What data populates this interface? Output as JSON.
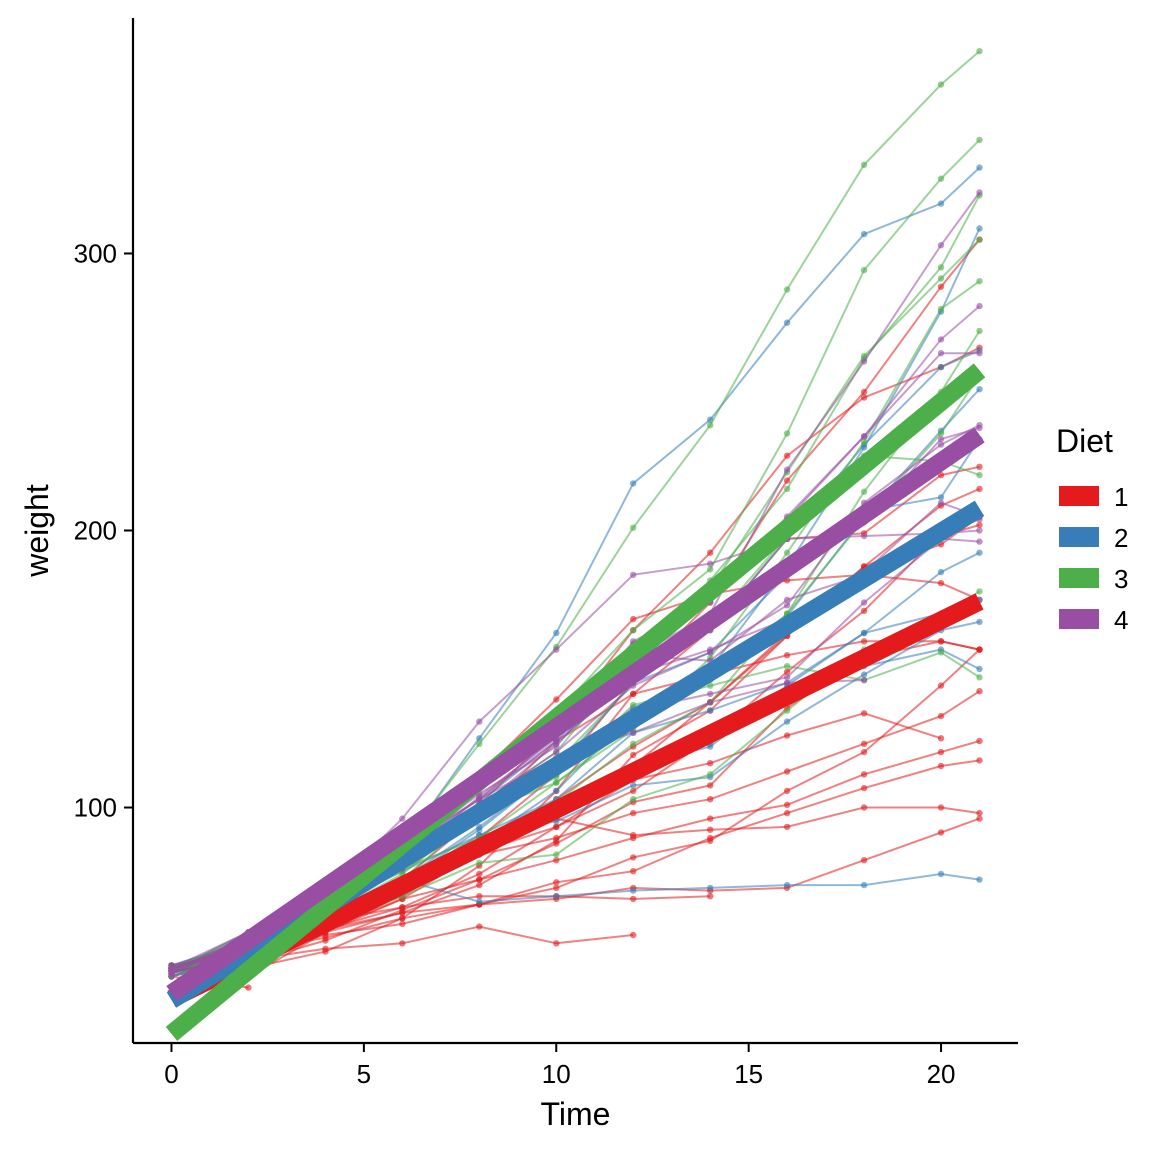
{
  "chart_data": {
    "type": "line",
    "title": "",
    "xlabel": "Time",
    "ylabel": "weight",
    "xlim": [
      -1,
      22
    ],
    "ylim": [
      15,
      385
    ],
    "x_ticks": [
      0,
      5,
      10,
      15,
      20
    ],
    "y_ticks": [
      100,
      200,
      300
    ],
    "grid": false,
    "legend": {
      "title": "Diet",
      "placement": "right"
    },
    "colors": {
      "1": "#e41a1c",
      "2": "#377eb8",
      "3": "#4daf4a",
      "4": "#984ea3"
    },
    "times": [
      0,
      2,
      4,
      6,
      8,
      10,
      12,
      14,
      16,
      18,
      20,
      21
    ],
    "series": [
      {
        "name": "1",
        "color": "#e41a1c",
        "chicks": [
          [
            42,
            51,
            59,
            64,
            76,
            93,
            106,
            125,
            149,
            171,
            199,
            205
          ],
          [
            40,
            49,
            58,
            72,
            84,
            103,
            122,
            138,
            162,
            187,
            209,
            215
          ],
          [
            43,
            39,
            55,
            67,
            84,
            99,
            115,
            138,
            163,
            187,
            198,
            202
          ],
          [
            42,
            49,
            56,
            67,
            74,
            87,
            102,
            108,
            136,
            154,
            160,
            157
          ],
          [
            41,
            42,
            48,
            60,
            79,
            106,
            141,
            164,
            197,
            199,
            220,
            223
          ],
          [
            41,
            49,
            59,
            74,
            97,
            124,
            141,
            148,
            155,
            160,
            160,
            157
          ],
          [
            41,
            49,
            57,
            71,
            89,
            112,
            146,
            174,
            218,
            250,
            288,
            305
          ],
          [
            42,
            50,
            61,
            71,
            84,
            93,
            110,
            116,
            126,
            134,
            125,
            null
          ],
          [
            42,
            51,
            59,
            68,
            85,
            96,
            90,
            92,
            93,
            100,
            100,
            98
          ],
          [
            41,
            44,
            52,
            63,
            74,
            81,
            89,
            96,
            101,
            112,
            120,
            124
          ],
          [
            43,
            51,
            63,
            84,
            112,
            139,
            168,
            177,
            182,
            184,
            181,
            175
          ],
          [
            41,
            49,
            56,
            62,
            72,
            88,
            119,
            135,
            162,
            185,
            195,
            205
          ],
          [
            41,
            48,
            53,
            60,
            65,
            67,
            71,
            70,
            71,
            81,
            91,
            96
          ],
          [
            41,
            49,
            62,
            79,
            101,
            128,
            164,
            192,
            227,
            248,
            259,
            266
          ],
          [
            41,
            49,
            56,
            64,
            68,
            68,
            67,
            68,
            null,
            null,
            null,
            null
          ],
          [
            41,
            45,
            49,
            51,
            57,
            51,
            54,
            null,
            null,
            null,
            null,
            null
          ],
          [
            42,
            51,
            61,
            72,
            83,
            89,
            98,
            103,
            113,
            123,
            133,
            142
          ],
          [
            39,
            35,
            null,
            null,
            null,
            null,
            null,
            null,
            null,
            null,
            null,
            null
          ],
          [
            43,
            48,
            55,
            62,
            65,
            71,
            82,
            88,
            106,
            120,
            144,
            157
          ],
          [
            41,
            47,
            54,
            58,
            65,
            73,
            77,
            89,
            98,
            107,
            115,
            117
          ]
        ]
      },
      {
        "name": "2",
        "color": "#377eb8",
        "chicks": [
          [
            40,
            50,
            62,
            86,
            125,
            163,
            217,
            240,
            275,
            307,
            318,
            331
          ],
          [
            41,
            55,
            64,
            77,
            90,
            95,
            108,
            111,
            131,
            148,
            164,
            167
          ],
          [
            43,
            52,
            61,
            73,
            90,
            103,
            127,
            135,
            145,
            163,
            170,
            175
          ],
          [
            42,
            52,
            58,
            74,
            66,
            68,
            70,
            71,
            72,
            72,
            76,
            74
          ],
          [
            40,
            49,
            62,
            78,
            102,
            124,
            146,
            164,
            197,
            231,
            259,
            265
          ],
          [
            42,
            48,
            57,
            74,
            93,
            114,
            136,
            147,
            169,
            205,
            236,
            251
          ],
          [
            39,
            46,
            58,
            73,
            87,
            100,
            115,
            123,
            144,
            163,
            185,
            192
          ],
          [
            39,
            46,
            58,
            73,
            92,
            114,
            145,
            156,
            184,
            207,
            212,
            233
          ],
          [
            39,
            48,
            59,
            74,
            87,
            106,
            134,
            150,
            187,
            230,
            279,
            309
          ],
          [
            42,
            48,
            59,
            72,
            85,
            98,
            115,
            122,
            143,
            151,
            157,
            150
          ]
        ]
      },
      {
        "name": "3",
        "color": "#4daf4a",
        "chicks": [
          [
            42,
            53,
            62,
            73,
            85,
            102,
            123,
            138,
            170,
            204,
            235,
            256
          ],
          [
            41,
            49,
            65,
            82,
            107,
            129,
            159,
            179,
            221,
            263,
            291,
            305
          ],
          [
            39,
            50,
            63,
            77,
            96,
            111,
            137,
            144,
            151,
            146,
            156,
            147
          ],
          [
            41,
            49,
            63,
            85,
            107,
            134,
            164,
            186,
            235,
            294,
            327,
            341
          ],
          [
            41,
            53,
            64,
            87,
            123,
            158,
            201,
            238,
            287,
            332,
            361,
            373
          ],
          [
            39,
            48,
            61,
            76,
            98,
            116,
            145,
            166,
            198,
            227,
            225,
            220
          ],
          [
            41,
            48,
            56,
            68,
            80,
            83,
            103,
            112,
            135,
            157,
            169,
            178
          ],
          [
            41,
            49,
            61,
            74,
            98,
            109,
            128,
            154,
            192,
            232,
            280,
            290
          ],
          [
            42,
            50,
            61,
            78,
            89,
            109,
            130,
            146,
            170,
            214,
            250,
            272
          ],
          [
            41,
            55,
            66,
            79,
            101,
            120,
            154,
            182,
            215,
            262,
            295,
            321
          ]
        ]
      },
      {
        "name": "4",
        "color": "#984ea3",
        "chicks": [
          [
            42,
            51,
            66,
            85,
            103,
            124,
            155,
            153,
            175,
            184,
            199,
            204
          ],
          [
            42,
            49,
            63,
            84,
            103,
            126,
            160,
            174,
            204,
            234,
            269,
            281
          ],
          [
            42,
            55,
            69,
            96,
            131,
            157,
            184,
            188,
            197,
            198,
            199,
            200
          ],
          [
            42,
            51,
            65,
            86,
            103,
            118,
            127,
            138,
            145,
            146,
            null,
            null
          ],
          [
            41,
            50,
            61,
            78,
            98,
            117,
            135,
            141,
            147,
            174,
            197,
            196
          ],
          [
            40,
            52,
            62,
            82,
            101,
            120,
            144,
            156,
            173,
            210,
            231,
            238
          ],
          [
            41,
            53,
            66,
            79,
            100,
            123,
            148,
            157,
            168,
            185,
            210,
            205
          ],
          [
            39,
            50,
            62,
            80,
            104,
            125,
            154,
            170,
            222,
            261,
            303,
            322
          ],
          [
            40,
            53,
            64,
            85,
            108,
            128,
            152,
            166,
            184,
            203,
            233,
            237
          ],
          [
            41,
            54,
            67,
            84,
            105,
            122,
            155,
            175,
            205,
            234,
            264,
            264
          ]
        ]
      }
    ],
    "trend_lines": [
      {
        "name": "1",
        "color": "#e41a1c",
        "x": [
          0,
          21
        ],
        "y": [
          30.9,
          174.4
        ]
      },
      {
        "name": "2",
        "color": "#377eb8",
        "x": [
          0,
          21
        ],
        "y": [
          30.5,
          208.0
        ]
      },
      {
        "name": "3",
        "color": "#4daf4a",
        "x": [
          0,
          21
        ],
        "y": [
          18.3,
          257.8
        ]
      },
      {
        "name": "4",
        "color": "#984ea3",
        "x": [
          0,
          21
        ],
        "y": [
          32.9,
          234.5
        ]
      }
    ]
  }
}
